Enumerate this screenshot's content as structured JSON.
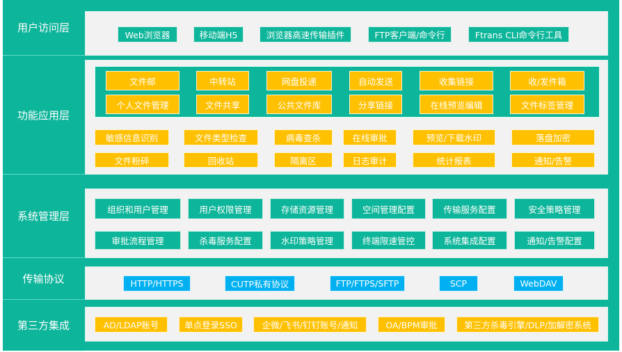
{
  "colors": {
    "teal": "#0db59a",
    "panel": "#f2f2f2",
    "yellow": "#ffc000",
    "blue": "#00b0f0"
  },
  "layers": [
    {
      "label": "用户访问层",
      "items": [
        "Web浏览器",
        "移动端H5",
        "浏览器高速传输插件",
        "FTP客户端/命令行",
        "Ftrans CLI命令行工具"
      ]
    },
    {
      "label": "功能应用层",
      "core": [
        "文件邮",
        "中转站",
        "网盘投递",
        "自动发送",
        "收集链接",
        "收/发件箱",
        "个人文件管理",
        "文件共享",
        "公共文件库",
        "分享链接",
        "在线预览编辑",
        "文件标签管理"
      ],
      "items": [
        "敏感信息识别",
        "文件类型检查",
        "病毒查杀",
        "在线审批",
        "预览/下载水印",
        "落盘加密",
        "文件粉碎",
        "回收站",
        "隔离区",
        "日志审计",
        "统计报表",
        "通知/告警"
      ]
    },
    {
      "label": "系统管理层",
      "items": [
        "组织和用户管理",
        "用户权限管理",
        "存储资源管理",
        "空间管理配置",
        "传输服务配置",
        "安全策略管理",
        "审批流程管理",
        "杀毒服务配置",
        "水印策略管理",
        "终端限速管控",
        "系统集成配置",
        "通知/告警配置"
      ]
    },
    {
      "label": "传输协议",
      "items": [
        "HTTP/HTTPS",
        "CUTP私有协议",
        "FTP/FTPS/SFTP",
        "SCP",
        "WebDAV"
      ]
    },
    {
      "label": "第三方集成",
      "items": [
        "AD/LDAP账号",
        "单点登录SSO",
        "企微/飞书/钉钉账号/通知",
        "OA/BPM审批",
        "第三方杀毒引擎/DLP/加解密系统"
      ]
    }
  ]
}
